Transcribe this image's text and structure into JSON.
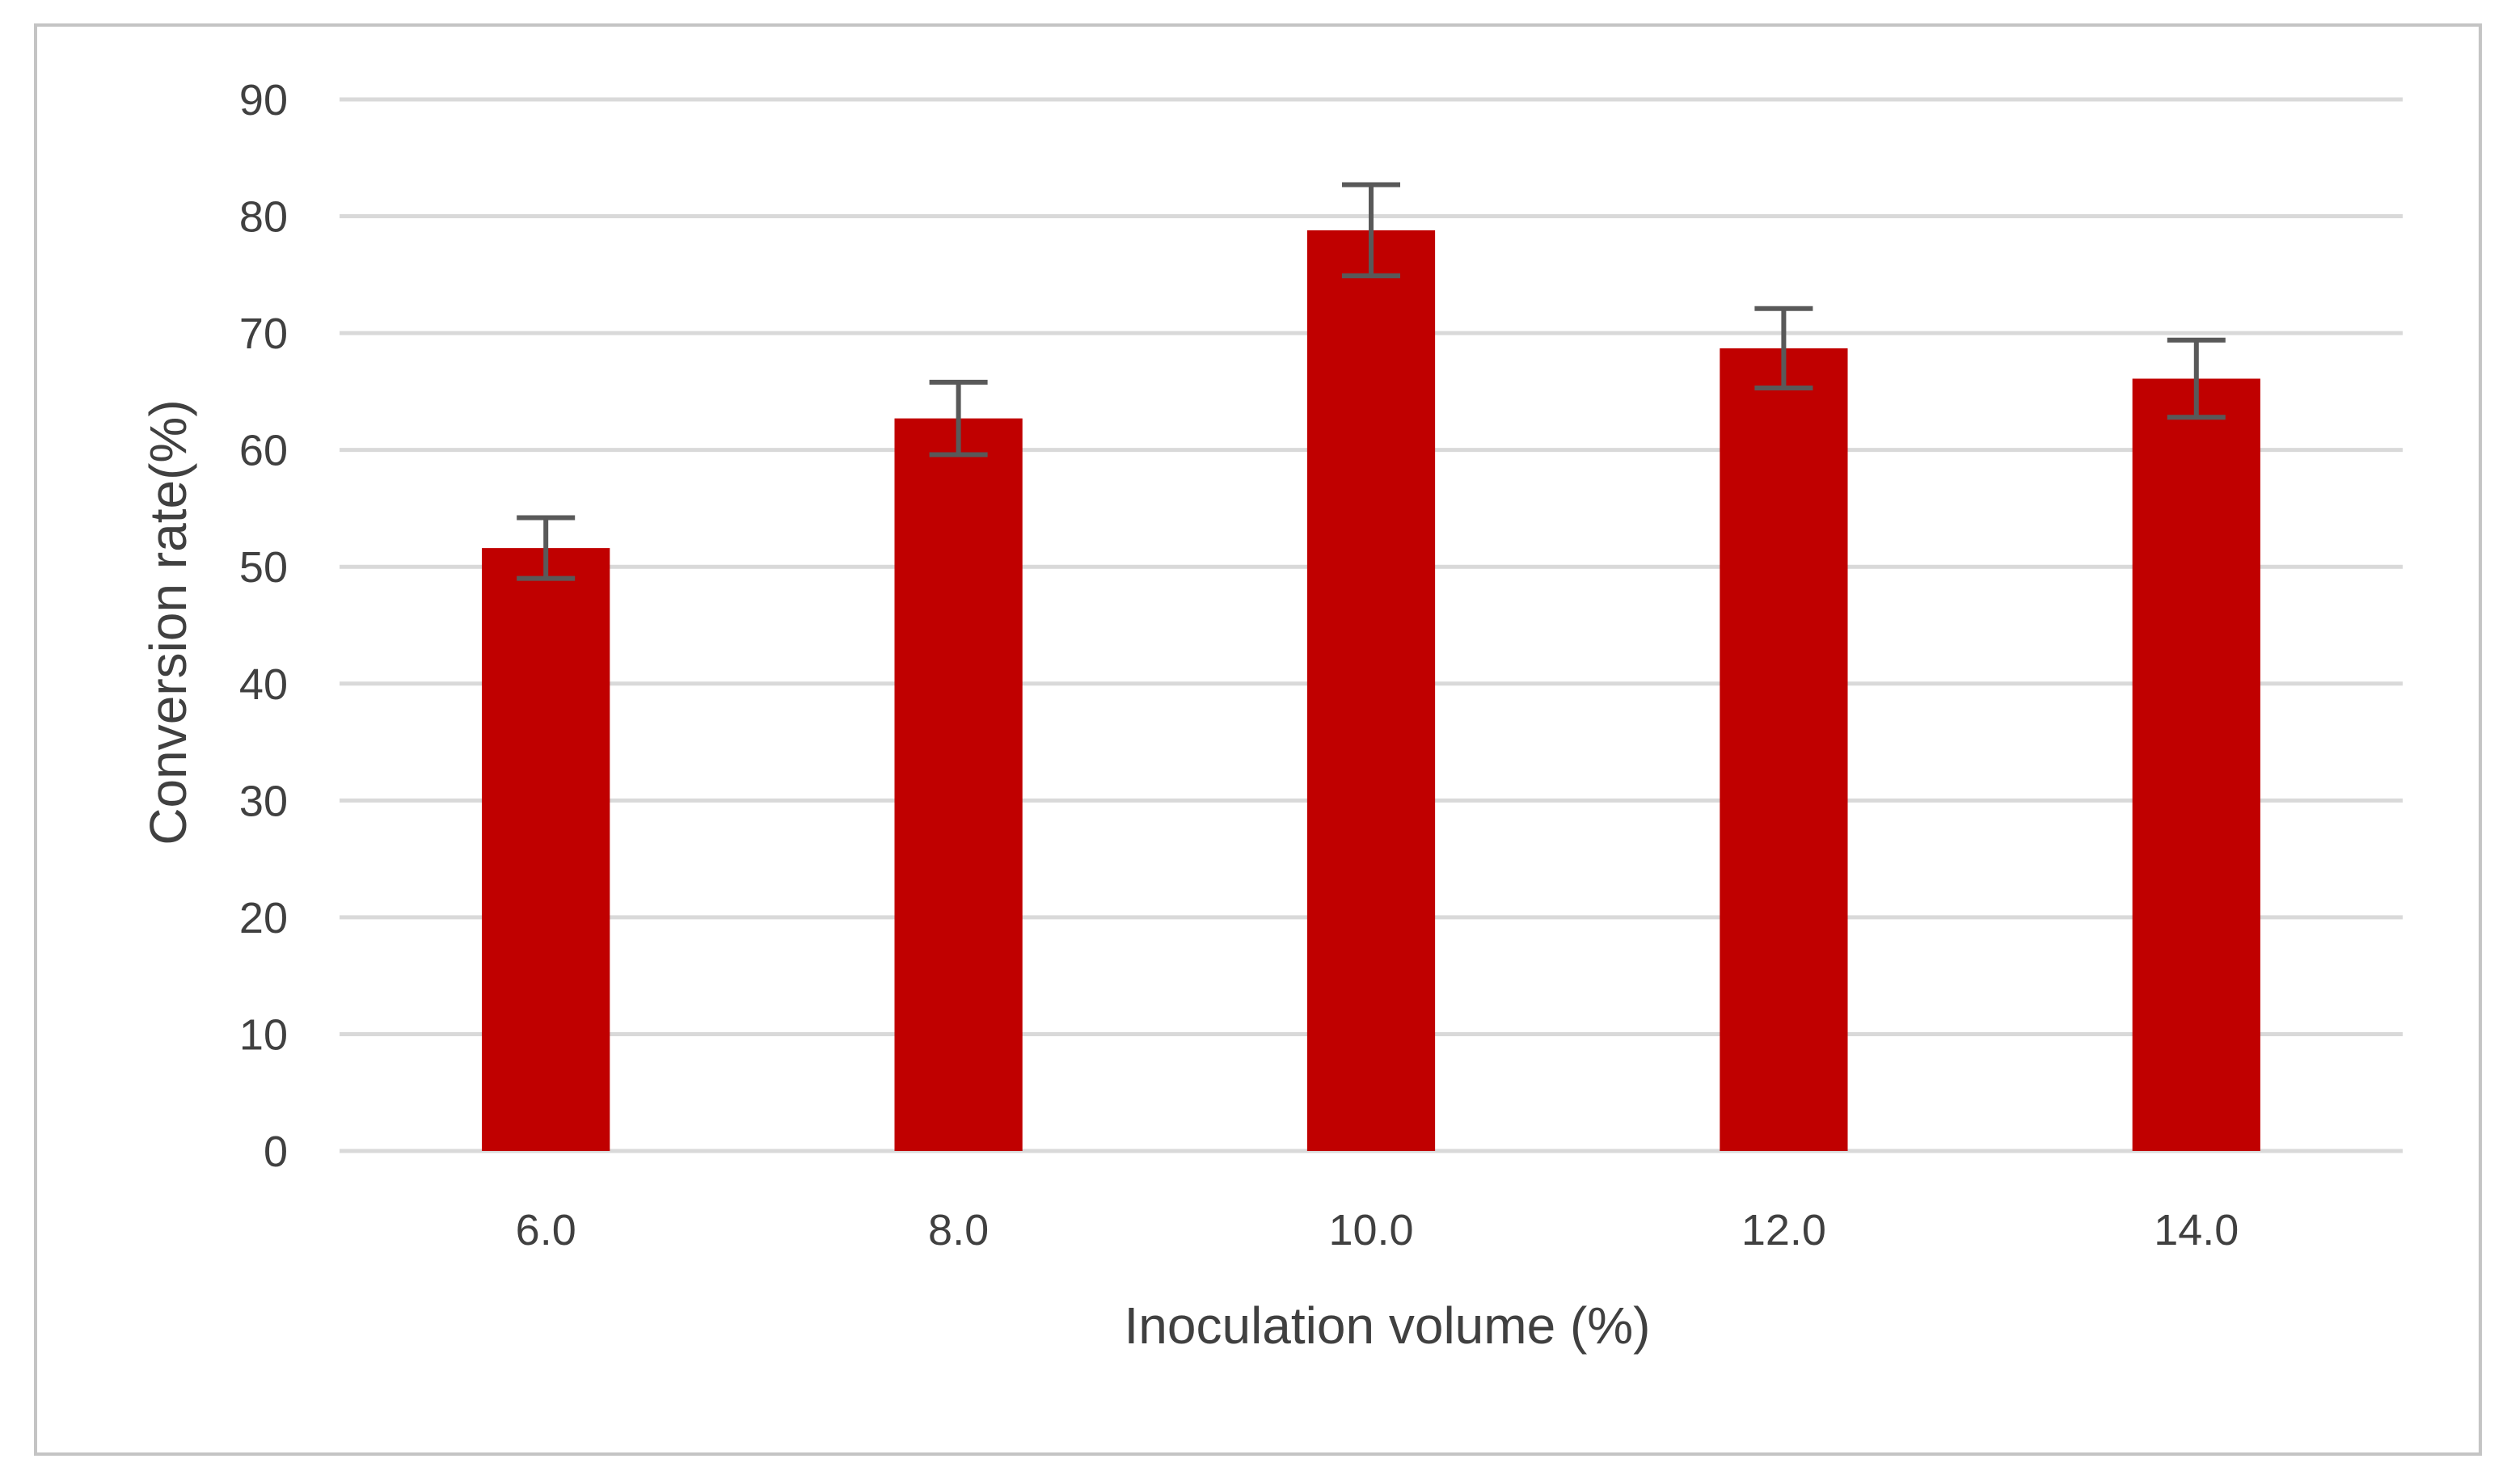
{
  "chart_data": {
    "type": "bar",
    "title": "",
    "xlabel": "Inoculation volume (%)",
    "ylabel": "Conversion rate(%)",
    "categories": [
      "6.0",
      "8.0",
      "10.0",
      "12.0",
      "14.0"
    ],
    "values": [
      51.6,
      62.7,
      78.8,
      68.7,
      66.1
    ],
    "error": [
      2.6,
      3.1,
      3.9,
      3.4,
      3.3
    ],
    "ylim": [
      0,
      90
    ],
    "yticks": [
      0,
      10,
      20,
      30,
      40,
      50,
      60,
      70,
      80,
      90
    ],
    "grid": true,
    "legend": null,
    "colors": {
      "bar": "#c00000",
      "error_bar": "#595959",
      "gridline": "#d9d9d9",
      "text": "#404040",
      "frame_border": "#c4c4c4"
    }
  }
}
